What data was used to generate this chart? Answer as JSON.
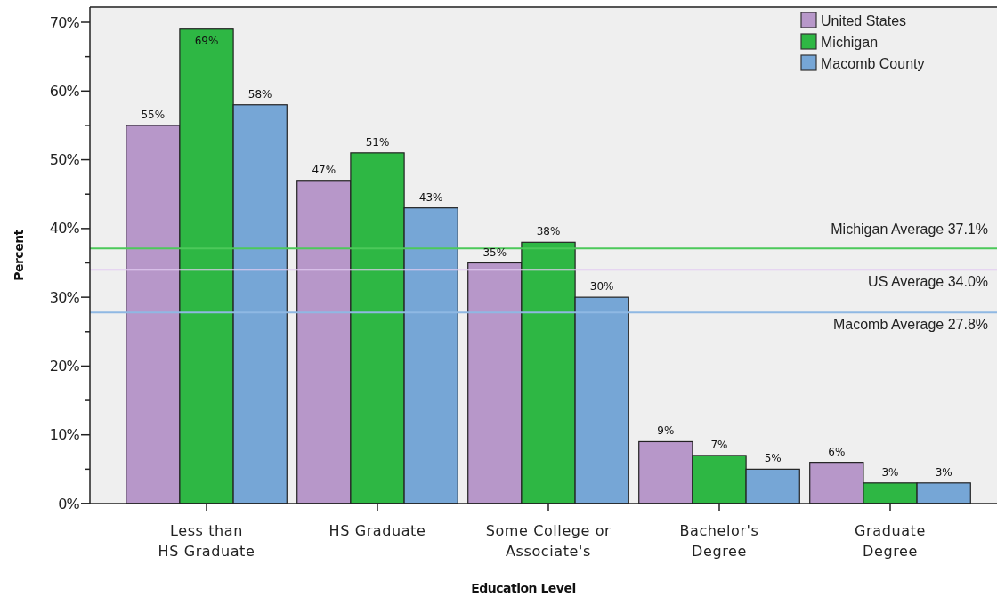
{
  "chart_data": {
    "type": "bar",
    "xlabel": "Education Level",
    "ylabel": "Percent",
    "categories": [
      "Less than\nHS Graduate",
      "HS Graduate",
      "Some College or\nAssociate's",
      "Bachelor's\nDegree",
      "Graduate\nDegree"
    ],
    "series": [
      {
        "name": "United States",
        "color": "#b797c9",
        "values": [
          55,
          47,
          35,
          9,
          6
        ],
        "value_labels": [
          "55%",
          "47%",
          "35%",
          "9%",
          "6%"
        ]
      },
      {
        "name": "Michigan",
        "color": "#2eb744",
        "values": [
          69,
          51,
          38,
          7,
          3
        ],
        "value_labels": [
          "69%",
          "51%",
          "38%",
          "7%",
          "3%"
        ]
      },
      {
        "name": "Macomb County",
        "color": "#76a6d6",
        "values": [
          58,
          43,
          30,
          5,
          3
        ],
        "value_labels": [
          "58%",
          "43%",
          "30%",
          "5%",
          "3%"
        ]
      }
    ],
    "ylim": [
      0,
      72.2
    ],
    "yticks": [
      {
        "value": 0,
        "label": "0%"
      },
      {
        "value": 5,
        "label": null
      },
      {
        "value": 10,
        "label": "10%"
      },
      {
        "value": 15,
        "label": null
      },
      {
        "value": 20,
        "label": "20%"
      },
      {
        "value": 25,
        "label": null
      },
      {
        "value": 30,
        "label": "30%"
      },
      {
        "value": 35,
        "label": null
      },
      {
        "value": 40,
        "label": "40%"
      },
      {
        "value": 45,
        "label": null
      },
      {
        "value": 50,
        "label": "50%"
      },
      {
        "value": 55,
        "label": null
      },
      {
        "value": 60,
        "label": "60%"
      },
      {
        "value": 65,
        "label": null
      },
      {
        "value": 70,
        "label": "70%"
      }
    ],
    "ref_lines": [
      {
        "axis": "y",
        "value": 37.1,
        "label": "Michigan Average 37.1%",
        "color": "#4cc95a"
      },
      {
        "axis": "y",
        "value": 34.0,
        "label": "US Average 34.0%",
        "color": "#e3ccf2"
      },
      {
        "axis": "y",
        "value": 27.8,
        "label": "Macomb Average 27.8%",
        "color": "#8fb8e3"
      }
    ],
    "legend": "top right"
  }
}
